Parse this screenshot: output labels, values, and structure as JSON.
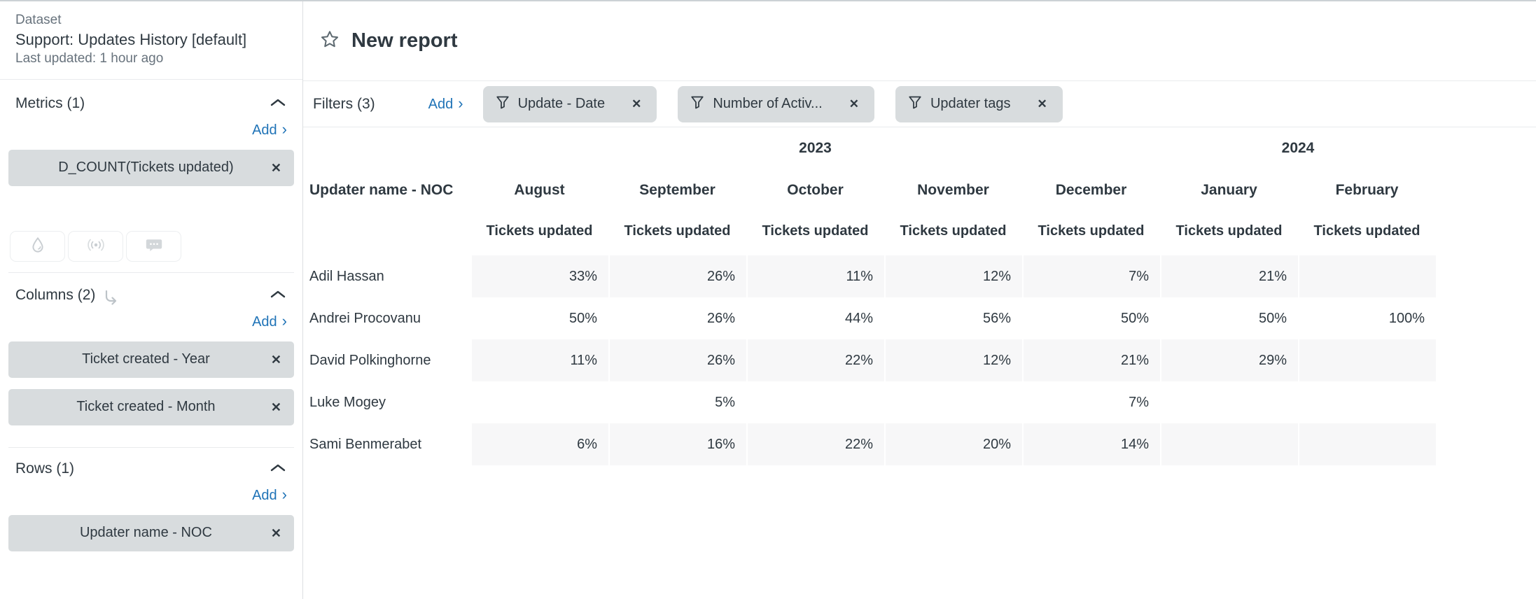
{
  "sidebar": {
    "dataset": {
      "label": "Dataset",
      "name": "Support: Updates History [default]",
      "updated": "Last updated: 1 hour ago"
    },
    "add_label": "Add",
    "sections": {
      "metrics": {
        "title": "Metrics (1)",
        "chips": [
          "D_COUNT(Tickets updated)"
        ]
      },
      "columns": {
        "title": "Columns (2)",
        "chips": [
          "Ticket created - Year",
          "Ticket created - Month"
        ]
      },
      "rows": {
        "title": "Rows (1)",
        "chips": [
          "Updater name - NOC"
        ]
      }
    },
    "tool_icons": [
      "droplet-icon",
      "broadcast-icon",
      "chat-icon"
    ]
  },
  "header": {
    "title": "New report"
  },
  "filters": {
    "label": "Filters (3)",
    "add_label": "Add",
    "chips": [
      "Update - Date",
      "Number of Activ...",
      "Updater tags"
    ]
  },
  "pivot": {
    "row_header": "Updater name - NOC",
    "metric_label": "Tickets updated",
    "year_groups": [
      {
        "year": "2023",
        "span": 5
      },
      {
        "year": "2024",
        "span": 2
      }
    ],
    "months": [
      "August",
      "September",
      "October",
      "November",
      "December",
      "January",
      "February"
    ],
    "rows": [
      {
        "name": "Adil Hassan",
        "values": [
          "33%",
          "26%",
          "11%",
          "12%",
          "7%",
          "21%",
          ""
        ]
      },
      {
        "name": "Andrei Procovanu",
        "values": [
          "50%",
          "26%",
          "44%",
          "56%",
          "50%",
          "50%",
          "100%"
        ]
      },
      {
        "name": "David Polkinghorne",
        "values": [
          "11%",
          "26%",
          "22%",
          "12%",
          "21%",
          "29%",
          ""
        ]
      },
      {
        "name": "Luke Mogey",
        "values": [
          "",
          "5%",
          "",
          "",
          "7%",
          "",
          ""
        ]
      },
      {
        "name": "Sami Benmerabet",
        "values": [
          "6%",
          "16%",
          "22%",
          "20%",
          "14%",
          "",
          ""
        ]
      }
    ]
  },
  "colors": {
    "text_dark": "#2f3941",
    "text_muted": "#68737d",
    "link_blue": "#1f73b7",
    "chip_bg": "#d8dcde",
    "stripe_bg": "#f7f7f8"
  }
}
